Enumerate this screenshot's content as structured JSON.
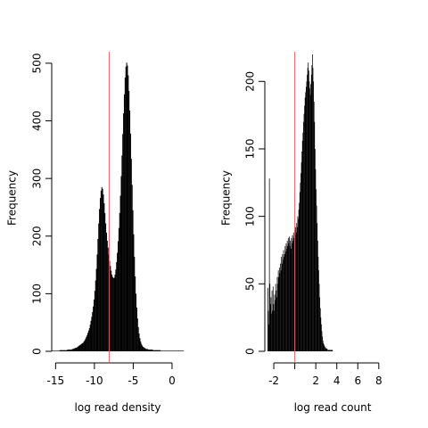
{
  "chart_data": [
    {
      "type": "bar",
      "subtype": "histogram",
      "xlabel": "log read density",
      "ylabel": "Frequency",
      "xlim": [
        -15.5,
        1.5
      ],
      "ylim": [
        0,
        520
      ],
      "xticks": [
        -15,
        -10,
        -5,
        0
      ],
      "xtick_labels": [
        "-15",
        "-10",
        "-5",
        "0"
      ],
      "yticks": [
        0,
        100,
        200,
        300,
        400,
        500
      ],
      "ytick_labels": [
        "0",
        "100",
        "200",
        "300",
        "400",
        "500"
      ],
      "reference_line": {
        "x": -8.1,
        "color": "#e06666"
      },
      "bar_color": "#000000",
      "bins": {
        "x_start": -15.5,
        "width": 0.1,
        "values": [
          1,
          1,
          1,
          1,
          1,
          1,
          1,
          1,
          1,
          1,
          2,
          2,
          2,
          2,
          2,
          2,
          2,
          2,
          2,
          2,
          3,
          3,
          3,
          3,
          3,
          3,
          4,
          4,
          5,
          5,
          6,
          6,
          7,
          8,
          9,
          10,
          11,
          12,
          13,
          14,
          15,
          17,
          19,
          22,
          25,
          28,
          32,
          36,
          40,
          46,
          53,
          60,
          68,
          78,
          90,
          105,
          123,
          143,
          168,
          195,
          222,
          247,
          266,
          279,
          285,
          282,
          272,
          257,
          240,
          222,
          206,
          192,
          180,
          168,
          157,
          148,
          140,
          133,
          129,
          127,
          128,
          133,
          142,
          155,
          171,
          191,
          214,
          240,
          270,
          304,
          340,
          377,
          413,
          446,
          475,
          494,
          501,
          496,
          479,
          452,
          418,
          378,
          334,
          289,
          245,
          203,
          164,
          130,
          100,
          76,
          57,
          42,
          31,
          23,
          17,
          13,
          10,
          8,
          7,
          6,
          5,
          4,
          4,
          4,
          3,
          3,
          3,
          3,
          3,
          3,
          2,
          2,
          2,
          2,
          2,
          2,
          2,
          2,
          2,
          2,
          1,
          1,
          1,
          1,
          1,
          1,
          1,
          1,
          1,
          1,
          1,
          1,
          1,
          1,
          1,
          1,
          1,
          1,
          1,
          1,
          1,
          1,
          1,
          1,
          1,
          1,
          1,
          1,
          1,
          1
        ]
      }
    },
    {
      "type": "bar",
      "subtype": "histogram",
      "xlabel": "log read count",
      "ylabel": "Frequency",
      "xlim": [
        -2.6,
        9.8
      ],
      "ylim": [
        0,
        222
      ],
      "xticks": [
        -2,
        0,
        2,
        4,
        6,
        8
      ],
      "xtick_labels": [
        "-2",
        "",
        "2",
        "4",
        "6",
        "8"
      ],
      "yticks": [
        0,
        50,
        100,
        150,
        200
      ],
      "ytick_labels": [
        "0",
        "50",
        "100",
        "150",
        "200"
      ],
      "reference_line": {
        "x": 0.0,
        "color": "#e06666"
      },
      "bar_color": "#000000",
      "bins": {
        "x_start": -2.6,
        "width": 0.05,
        "values": [
          47,
          30,
          20,
          128,
          50,
          35,
          40,
          28,
          45,
          30,
          48,
          35,
          30,
          42,
          38,
          50,
          45,
          40,
          55,
          50,
          60,
          55,
          62,
          58,
          65,
          60,
          70,
          65,
          72,
          68,
          75,
          70,
          72,
          78,
          74,
          80,
          76,
          82,
          78,
          84,
          80,
          85,
          78,
          82,
          76,
          84,
          80,
          86,
          82,
          88,
          84,
          90,
          86,
          92,
          88,
          95,
          92,
          100,
          98,
          105,
          110,
          118,
          125,
          132,
          140,
          148,
          156,
          162,
          170,
          176,
          182,
          188,
          192,
          196,
          200,
          205,
          210,
          214,
          208,
          200,
          195,
          190,
          198,
          205,
          212,
          220,
          210,
          200,
          185,
          170,
          150,
          135,
          120,
          108,
          95,
          82,
          70,
          60,
          50,
          40,
          32,
          25,
          20,
          15,
          11,
          8,
          6,
          5,
          4,
          3,
          3,
          2,
          2,
          2,
          1,
          1,
          1,
          1,
          1,
          1,
          1,
          1,
          1,
          1
        ]
      }
    }
  ]
}
